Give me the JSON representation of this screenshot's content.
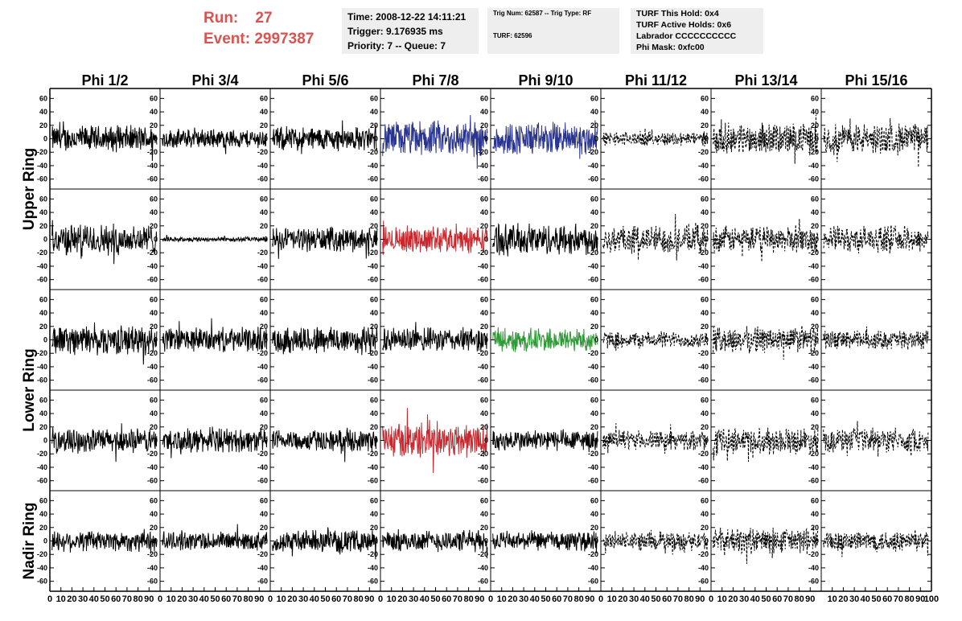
{
  "header": {
    "run_label": "Run:",
    "run_value": "27",
    "event_label": "Event:",
    "event_value": "2997387",
    "box1": [
      "Time: 2008-12-22 14:11:21",
      "Trigger: 9.176935 ms",
      "Priority: 7 -- Queue: 7"
    ],
    "box2": [
      "Trig Num: 62587 -- Trig Type: RF",
      "TURF: 62596"
    ],
    "box3": [
      "TURF This Hold: 0x4",
      "TURF Active Holds: 0x6",
      "Labrador CCCCCCCCCC",
      "Phi Mask: 0xfc00"
    ]
  },
  "chart_data": {
    "type": "line",
    "columns": [
      "Phi 1/2",
      "Phi 3/4",
      "Phi 5/6",
      "Phi 7/8",
      "Phi 9/10",
      "Phi 11/12",
      "Phi 13/14",
      "Phi 15/16"
    ],
    "rings": [
      {
        "label": "Upper Ring",
        "rows": 2
      },
      {
        "label": "Lower Ring",
        "rows": 2
      },
      {
        "label": "Nadir Ring",
        "rows": 1
      }
    ],
    "ylim": [
      -70,
      70
    ],
    "yticks": [
      60,
      40,
      20,
      0,
      -20,
      -40,
      -60
    ],
    "xlim": [
      0,
      100
    ],
    "xticks_default": [
      "0",
      "10",
      "20",
      "30",
      "40",
      "50",
      "60",
      "70",
      "80",
      "90"
    ],
    "xticks_last": [
      "10",
      "20",
      "30",
      "40",
      "50",
      "60",
      "70",
      "80",
      "90",
      "100"
    ],
    "colors": {
      "black": "#000000",
      "blue": "#2a3590",
      "red": "#c8282d",
      "green": "#2e9a35"
    },
    "panels": [
      [
        {
          "color": "black",
          "amp": 22,
          "style": "solid"
        },
        {
          "color": "black",
          "amp": 16,
          "style": "solid"
        },
        {
          "color": "black",
          "amp": 20,
          "style": "solid"
        },
        {
          "color": "blue",
          "amp": 30,
          "style": "solid"
        },
        {
          "color": "blue",
          "amp": 28,
          "style": "solid"
        },
        {
          "color": "black",
          "amp": 12,
          "style": "dashed"
        },
        {
          "color": "black",
          "amp": 26,
          "style": "dashed"
        },
        {
          "color": "black",
          "amp": 26,
          "style": "dashed"
        }
      ],
      [
        {
          "color": "black",
          "amp": 26,
          "style": "solid"
        },
        {
          "color": "black",
          "amp": 4,
          "style": "solid"
        },
        {
          "color": "black",
          "amp": 20,
          "style": "solid"
        },
        {
          "color": "red",
          "amp": 22,
          "style": "solid"
        },
        {
          "color": "black",
          "amp": 26,
          "style": "solid"
        },
        {
          "color": "black",
          "amp": 24,
          "style": "dashed"
        },
        {
          "color": "black",
          "amp": 22,
          "style": "dashed"
        },
        {
          "color": "black",
          "amp": 22,
          "style": "dashed"
        }
      ],
      [
        {
          "color": "black",
          "amp": 24,
          "style": "solid"
        },
        {
          "color": "black",
          "amp": 20,
          "style": "solid"
        },
        {
          "color": "black",
          "amp": 24,
          "style": "solid"
        },
        {
          "color": "black",
          "amp": 20,
          "style": "solid"
        },
        {
          "color": "green",
          "amp": 20,
          "style": "solid"
        },
        {
          "color": "black",
          "amp": 14,
          "style": "dashed"
        },
        {
          "color": "black",
          "amp": 22,
          "style": "dashed"
        },
        {
          "color": "black",
          "amp": 16,
          "style": "dashed"
        }
      ],
      [
        {
          "color": "black",
          "amp": 20,
          "style": "solid"
        },
        {
          "color": "black",
          "amp": 20,
          "style": "solid"
        },
        {
          "color": "black",
          "amp": 18,
          "style": "solid"
        },
        {
          "color": "red",
          "amp": 30,
          "style": "solid"
        },
        {
          "color": "black",
          "amp": 18,
          "style": "solid"
        },
        {
          "color": "black",
          "amp": 16,
          "style": "dashed"
        },
        {
          "color": "black",
          "amp": 22,
          "style": "dashed"
        },
        {
          "color": "black",
          "amp": 20,
          "style": "dashed"
        }
      ],
      [
        {
          "color": "black",
          "amp": 18,
          "style": "solid"
        },
        {
          "color": "black",
          "amp": 16,
          "style": "solid"
        },
        {
          "color": "black",
          "amp": 18,
          "style": "solid"
        },
        {
          "color": "black",
          "amp": 18,
          "style": "solid"
        },
        {
          "color": "black",
          "amp": 16,
          "style": "solid"
        },
        {
          "color": "black",
          "amp": 16,
          "style": "dashed"
        },
        {
          "color": "black",
          "amp": 22,
          "style": "dashed"
        },
        {
          "color": "black",
          "amp": 18,
          "style": "dashed"
        }
      ]
    ]
  }
}
